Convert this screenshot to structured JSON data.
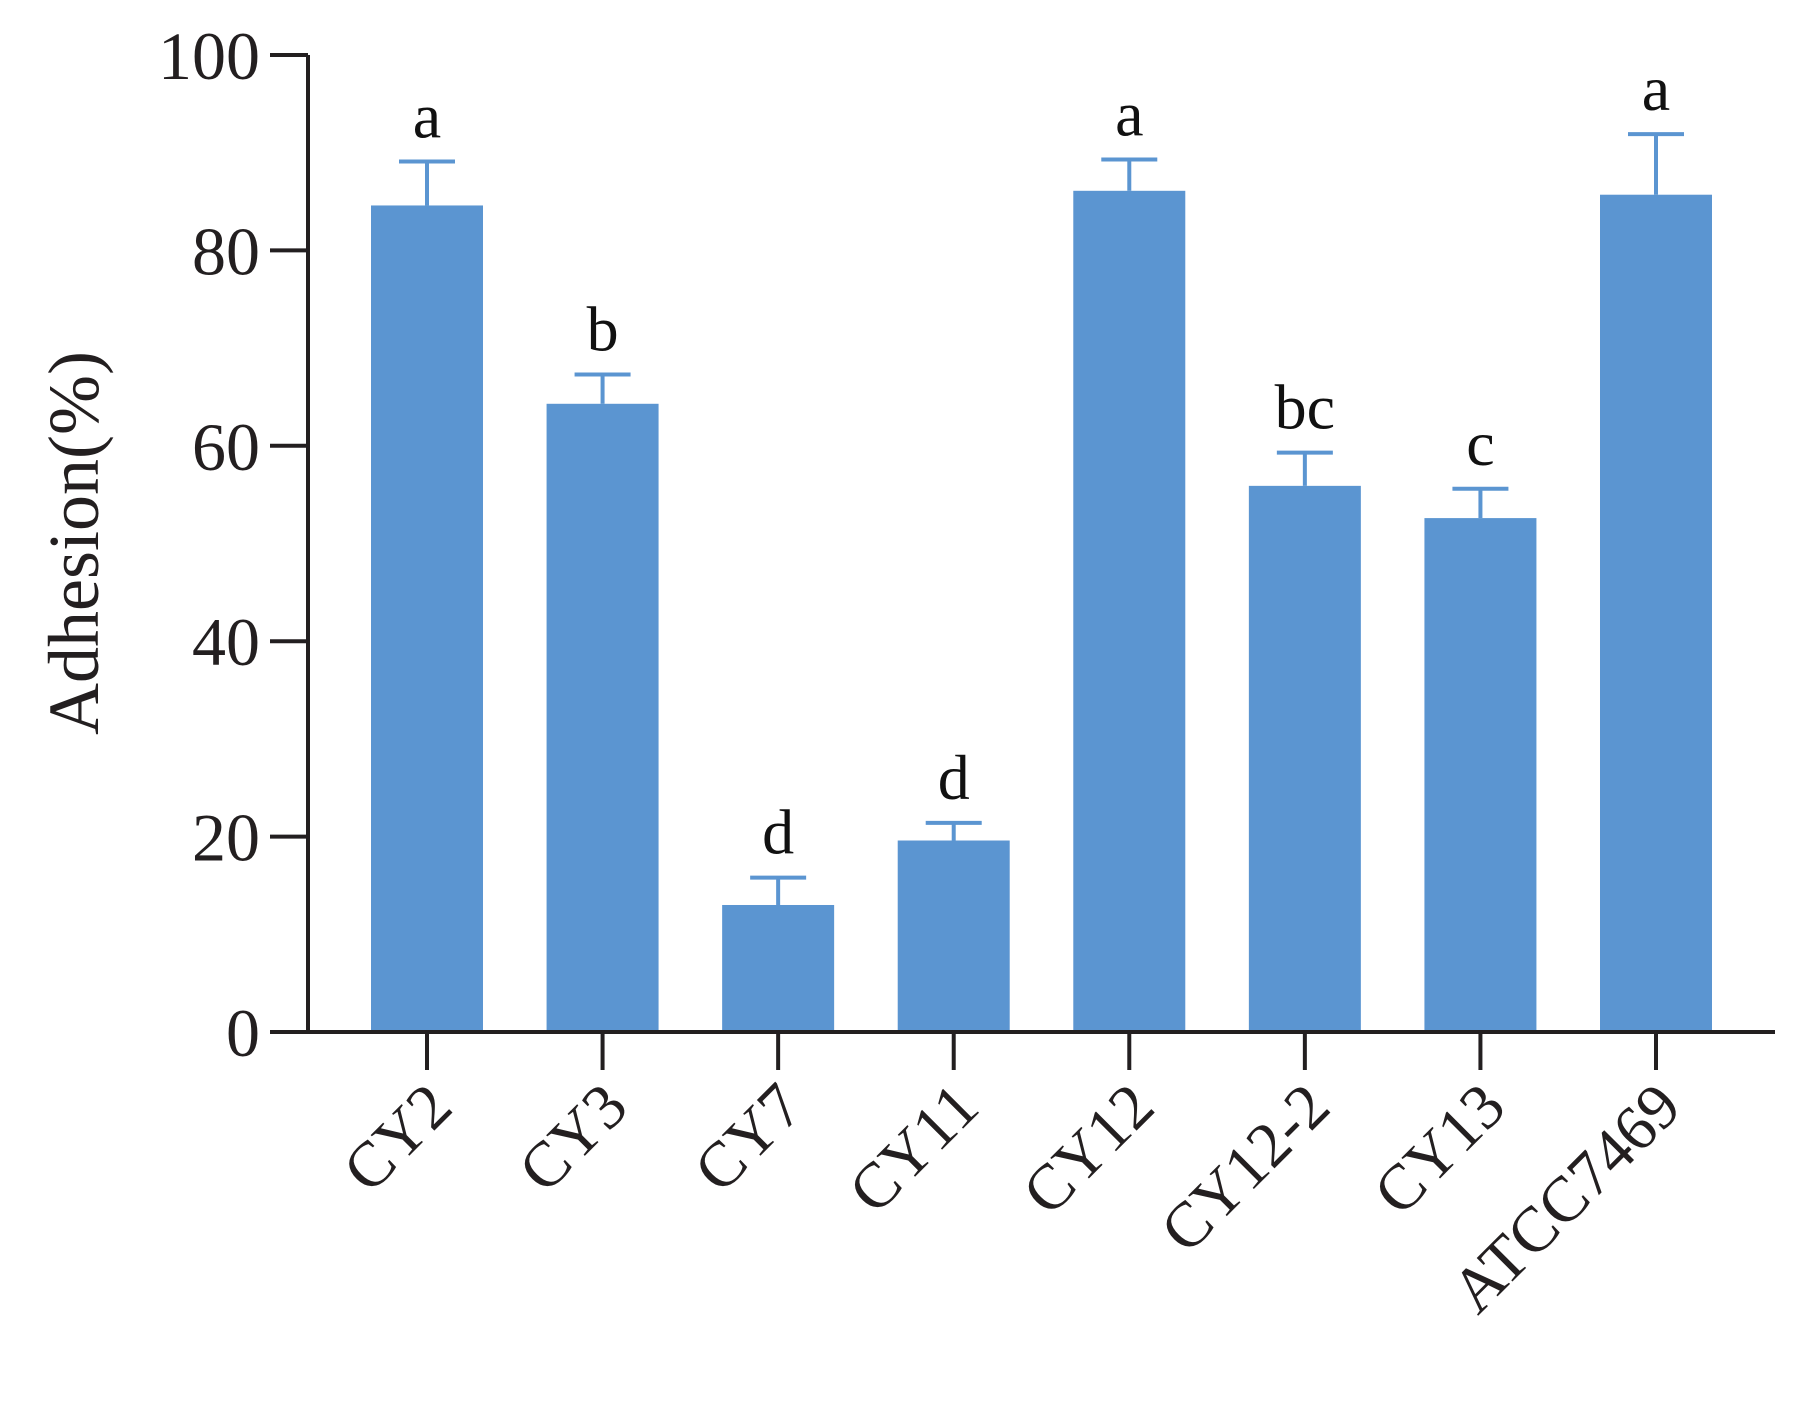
{
  "chart_data": {
    "type": "bar",
    "ylabel": "Adhesion(%)",
    "ylim": [
      0,
      100
    ],
    "yticks": [
      0,
      20,
      40,
      60,
      80,
      100
    ],
    "grid": false,
    "categories": [
      "CY2",
      "CY3",
      "CY7",
      "CY11",
      "CY12",
      "CY12-2",
      "CY13",
      "ATCC7469"
    ],
    "values": [
      84.6,
      64.3,
      13.0,
      19.6,
      86.1,
      55.9,
      52.6,
      85.7
    ],
    "errors": [
      4.5,
      3.0,
      2.8,
      1.8,
      3.2,
      3.4,
      3.0,
      6.2
    ],
    "significance": [
      "a",
      "b",
      "d",
      "d",
      "a",
      "bc",
      "c",
      "a"
    ],
    "bar_color": "#5b95d1",
    "error_color": "#5b95d1",
    "axis_color": "#231f20"
  }
}
